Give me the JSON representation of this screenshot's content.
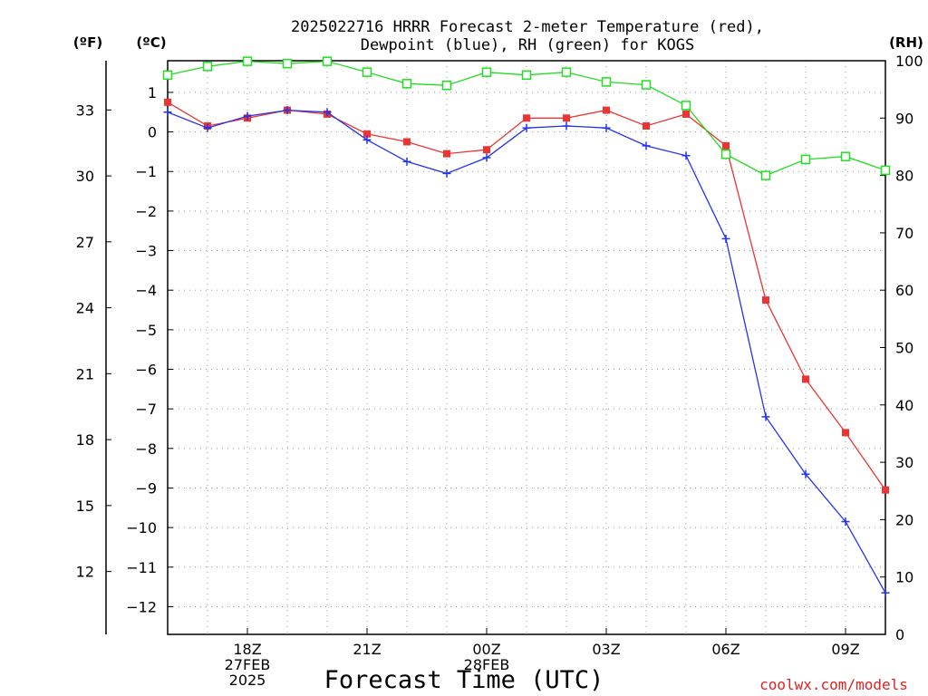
{
  "page": {
    "title_line1": "2025022716 HRRR Forecast 2-meter Temperature (red),",
    "title_line2": "Dewpoint (blue), RH (green) for KOGS",
    "unit_f": "(ºF)",
    "unit_c": "(ºC)",
    "unit_rh": "(RH)",
    "xlabel": "Forecast Time (UTC)",
    "credit": "coolwx.com/models"
  },
  "colors": {
    "temperature": "#ee3333",
    "dewpoint": "#2233ee",
    "rh": "#22dd22",
    "grid": "#999999",
    "axis": "#000000",
    "credit": "#dd2222"
  },
  "chart_data": {
    "type": "line",
    "title": "2025022716 HRRR Forecast 2-meter Temperature (red), Dewpoint (blue), RH (green) for KOGS",
    "xlabel": "Forecast Time (UTC)",
    "ylabel_left": "(ºC)",
    "ylabel_far_left": "(ºF)",
    "ylabel_right": "(RH)",
    "x_hours": [
      16,
      17,
      18,
      19,
      20,
      21,
      22,
      23,
      24,
      25,
      26,
      27,
      28,
      29,
      30,
      31,
      32,
      33,
      34
    ],
    "xlim_hours": [
      16,
      34
    ],
    "x_ticks": [
      {
        "hour": 18,
        "lines": [
          "18Z",
          "27FEB",
          "2025"
        ]
      },
      {
        "hour": 21,
        "lines": [
          "21Z"
        ]
      },
      {
        "hour": 24,
        "lines": [
          "00Z",
          "28FEB"
        ]
      },
      {
        "hour": 27,
        "lines": [
          "03Z"
        ]
      },
      {
        "hour": 30,
        "lines": [
          "06Z"
        ]
      },
      {
        "hour": 33,
        "lines": [
          "09Z"
        ]
      }
    ],
    "ylim_c": [
      -12.7,
      1.8
    ],
    "y_ticks_c": [
      1,
      0,
      -1,
      -2,
      -3,
      -4,
      -5,
      -6,
      -7,
      -8,
      -9,
      -10,
      -11,
      -12
    ],
    "y_ticks_f": [
      33,
      30,
      27,
      24,
      21,
      18,
      15,
      12
    ],
    "ylim_rh": [
      0,
      100
    ],
    "y_ticks_rh": [
      100,
      90,
      80,
      70,
      60,
      50,
      40,
      30,
      20,
      10,
      0
    ],
    "grid": true,
    "series": [
      {
        "name": "Temperature",
        "axis": "c",
        "marker": "filled-square",
        "values": [
          0.75,
          0.15,
          0.35,
          0.55,
          0.45,
          -0.05,
          -0.25,
          -0.55,
          -0.45,
          0.35,
          0.35,
          0.55,
          0.15,
          0.45,
          -0.35,
          -4.25,
          -6.25,
          -7.6,
          -9.05
        ]
      },
      {
        "name": "Dewpoint",
        "axis": "c",
        "marker": "plus",
        "values": [
          0.5,
          0.1,
          0.4,
          0.55,
          0.5,
          -0.2,
          -0.75,
          -1.05,
          -0.65,
          0.1,
          0.15,
          0.1,
          -0.35,
          -0.6,
          -2.7,
          -7.2,
          -8.65,
          -9.85,
          -11.65
        ]
      },
      {
        "name": "RH",
        "axis": "rh",
        "marker": "open-square",
        "values": [
          97.5,
          99,
          99.9,
          99.5,
          99.9,
          98,
          96,
          95.7,
          98,
          97.5,
          98,
          96.3,
          95.8,
          92.2,
          83.7,
          80,
          82.8,
          83.3,
          80.9
        ]
      }
    ]
  }
}
